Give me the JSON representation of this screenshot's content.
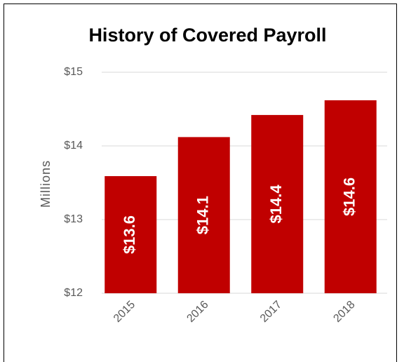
{
  "chart_data": {
    "type": "bar",
    "title": "History of Covered Payroll",
    "y_label": "Millions",
    "categories": [
      "2015",
      "2016",
      "2017",
      "2018"
    ],
    "values": [
      13.59,
      14.12,
      14.42,
      14.62
    ],
    "value_labels": [
      "$13.6",
      "$14.1",
      "$14.4",
      "$14.6"
    ],
    "color": "#c00000",
    "ylim": [
      12,
      15
    ],
    "yticks": [
      {
        "value": 12,
        "label": "$12"
      },
      {
        "value": 13,
        "label": "$13"
      },
      {
        "value": 14,
        "label": "$14"
      },
      {
        "value": 15,
        "label": "$15"
      }
    ],
    "grid": true
  }
}
